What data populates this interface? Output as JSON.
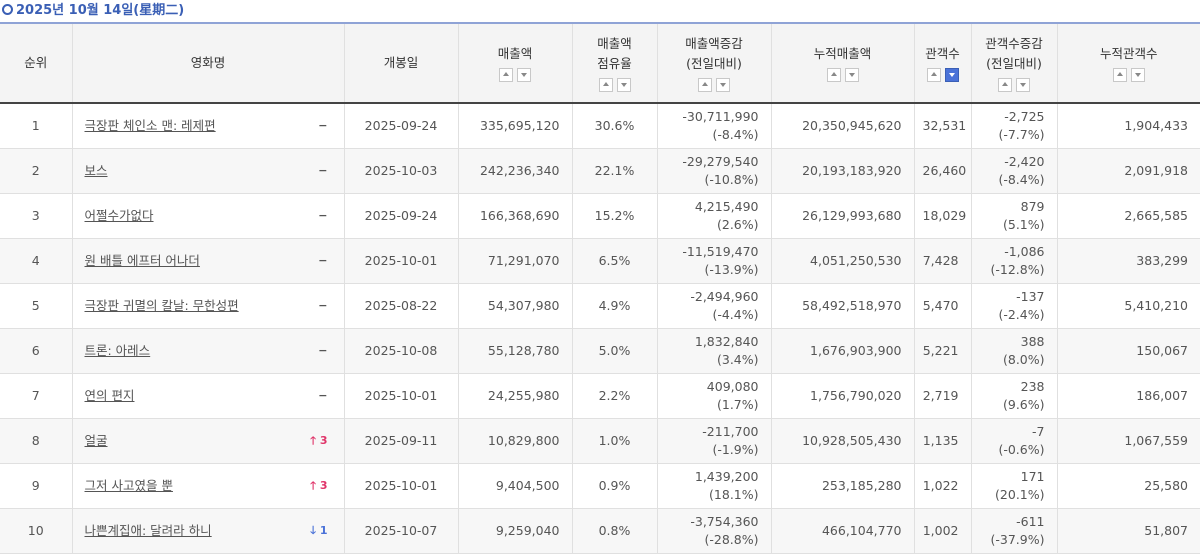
{
  "header": {
    "date": "2025년 10월 14일(星期二)"
  },
  "columns": {
    "rank": "순위",
    "title": "영화명",
    "open_date": "개봉일",
    "sales": "매출액",
    "share_1": "매출액",
    "share_2": "점유율",
    "sales_change_1": "매출액증감",
    "sales_change_2": "(전일대비)",
    "cum_sales": "누적매출액",
    "audience": "관객수",
    "aud_change_1": "관객수증감",
    "aud_change_2": "(전일대비)",
    "cum_audience": "누적관객수"
  },
  "rows": [
    {
      "rank": "1",
      "title": "극장판 체인소 맨: 레제편",
      "change": "−",
      "open_date": "2025-09-24",
      "sales": "335,695,120",
      "share": "30.6%",
      "sales_delta": "-30,711,990",
      "sales_delta_pct": "(-8.4%)",
      "cum_sales": "20,350,945,620",
      "audience": "32,531",
      "aud_delta": "-2,725",
      "aud_delta_pct": "(-7.7%)",
      "cum_audience": "1,904,433"
    },
    {
      "rank": "2",
      "title": "보스",
      "change": "−",
      "open_date": "2025-10-03",
      "sales": "242,236,340",
      "share": "22.1%",
      "sales_delta": "-29,279,540",
      "sales_delta_pct": "(-10.8%)",
      "cum_sales": "20,193,183,920",
      "audience": "26,460",
      "aud_delta": "-2,420",
      "aud_delta_pct": "(-8.4%)",
      "cum_audience": "2,091,918"
    },
    {
      "rank": "3",
      "title": "어쩔수가없다",
      "change": "−",
      "open_date": "2025-09-24",
      "sales": "166,368,690",
      "share": "15.2%",
      "sales_delta": "4,215,490",
      "sales_delta_pct": "(2.6%)",
      "cum_sales": "26,129,993,680",
      "audience": "18,029",
      "aud_delta": "879",
      "aud_delta_pct": "(5.1%)",
      "cum_audience": "2,665,585"
    },
    {
      "rank": "4",
      "title": "원 배틀 에프터 어나더",
      "change": "−",
      "open_date": "2025-10-01",
      "sales": "71,291,070",
      "share": "6.5%",
      "sales_delta": "-11,519,470",
      "sales_delta_pct": "(-13.9%)",
      "cum_sales": "4,051,250,530",
      "audience": "7,428",
      "aud_delta": "-1,086",
      "aud_delta_pct": "(-12.8%)",
      "cum_audience": "383,299"
    },
    {
      "rank": "5",
      "title": "극장판 귀멸의 칼날: 무한성편",
      "change": "−",
      "open_date": "2025-08-22",
      "sales": "54,307,980",
      "share": "4.9%",
      "sales_delta": "-2,494,960",
      "sales_delta_pct": "(-4.4%)",
      "cum_sales": "58,492,518,970",
      "audience": "5,470",
      "aud_delta": "-137",
      "aud_delta_pct": "(-2.4%)",
      "cum_audience": "5,410,210"
    },
    {
      "rank": "6",
      "title": "트론: 아레스",
      "change": "−",
      "open_date": "2025-10-08",
      "sales": "55,128,780",
      "share": "5.0%",
      "sales_delta": "1,832,840",
      "sales_delta_pct": "(3.4%)",
      "cum_sales": "1,676,903,900",
      "audience": "5,221",
      "aud_delta": "388",
      "aud_delta_pct": "(8.0%)",
      "cum_audience": "150,067"
    },
    {
      "rank": "7",
      "title": "연의 편지",
      "change": "−",
      "open_date": "2025-10-01",
      "sales": "24,255,980",
      "share": "2.2%",
      "sales_delta": "409,080",
      "sales_delta_pct": "(1.7%)",
      "cum_sales": "1,756,790,020",
      "audience": "2,719",
      "aud_delta": "238",
      "aud_delta_pct": "(9.6%)",
      "cum_audience": "186,007"
    },
    {
      "rank": "8",
      "title": "얼굴",
      "change": "🡑 3",
      "change_dir": "up",
      "open_date": "2025-09-11",
      "sales": "10,829,800",
      "share": "1.0%",
      "sales_delta": "-211,700",
      "sales_delta_pct": "(-1.9%)",
      "cum_sales": "10,928,505,430",
      "audience": "1,135",
      "aud_delta": "-7",
      "aud_delta_pct": "(-0.6%)",
      "cum_audience": "1,067,559"
    },
    {
      "rank": "9",
      "title": "그저 사고였을 뿐",
      "change": "🡑 3",
      "change_dir": "up",
      "open_date": "2025-10-01",
      "sales": "9,404,500",
      "share": "0.9%",
      "sales_delta": "1,439,200",
      "sales_delta_pct": "(18.1%)",
      "cum_sales": "253,185,280",
      "audience": "1,022",
      "aud_delta": "171",
      "aud_delta_pct": "(20.1%)",
      "cum_audience": "25,580"
    },
    {
      "rank": "10",
      "title": "나쁜계집애: 달려라 하니",
      "change": "🡓 1",
      "change_dir": "down",
      "open_date": "2025-10-07",
      "sales": "9,259,040",
      "share": "0.8%",
      "sales_delta": "-3,754,360",
      "sales_delta_pct": "(-28.8%)",
      "cum_sales": "466,104,770",
      "audience": "1,002",
      "aud_delta": "-611",
      "aud_delta_pct": "(-37.9%)",
      "cum_audience": "51,807"
    }
  ]
}
